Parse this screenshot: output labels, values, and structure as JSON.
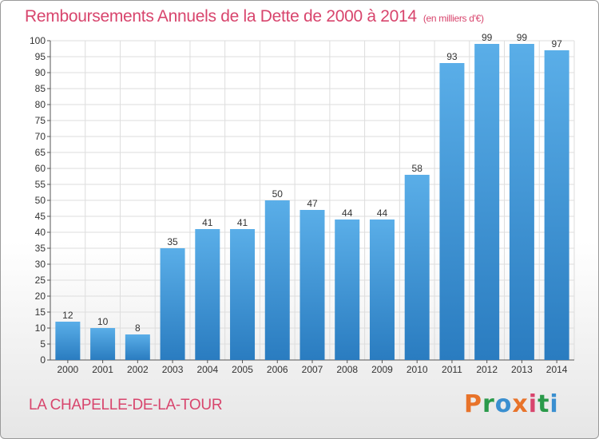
{
  "header": {
    "title": "Remboursements Annuels de la Dette de 2000 à 2014",
    "unit": "(en milliers d'€)"
  },
  "footer": {
    "commune": "LA CHAPELLE-DE-LA-TOUR",
    "brand": "Proxiti"
  },
  "colors": {
    "title": "#d8456d",
    "bar_top": "#5aaee8",
    "bar_bottom": "#2a7cc0",
    "grid": "#dddddd",
    "brand_letters": [
      "#e8732a",
      "#2a9a4a",
      "#3a8fd0",
      "#e8732a",
      "#d8456d",
      "#2a9a4a",
      "#3a8fd0"
    ]
  },
  "chart_data": {
    "type": "bar",
    "categories": [
      "2000",
      "2001",
      "2002",
      "2003",
      "2004",
      "2005",
      "2006",
      "2007",
      "2008",
      "2009",
      "2010",
      "2011",
      "2012",
      "2013",
      "2014"
    ],
    "values": [
      12,
      10,
      8,
      35,
      41,
      41,
      50,
      47,
      44,
      44,
      58,
      93,
      99,
      99,
      97
    ],
    "title": "Remboursements Annuels de la Dette de 2000 à 2014",
    "xlabel": "",
    "ylabel": "",
    "ylim": [
      0,
      100
    ],
    "yticks": [
      0,
      5,
      10,
      15,
      20,
      25,
      30,
      35,
      40,
      45,
      50,
      55,
      60,
      65,
      70,
      75,
      80,
      85,
      90,
      95,
      100
    ],
    "grid": true,
    "data_labels": true
  }
}
